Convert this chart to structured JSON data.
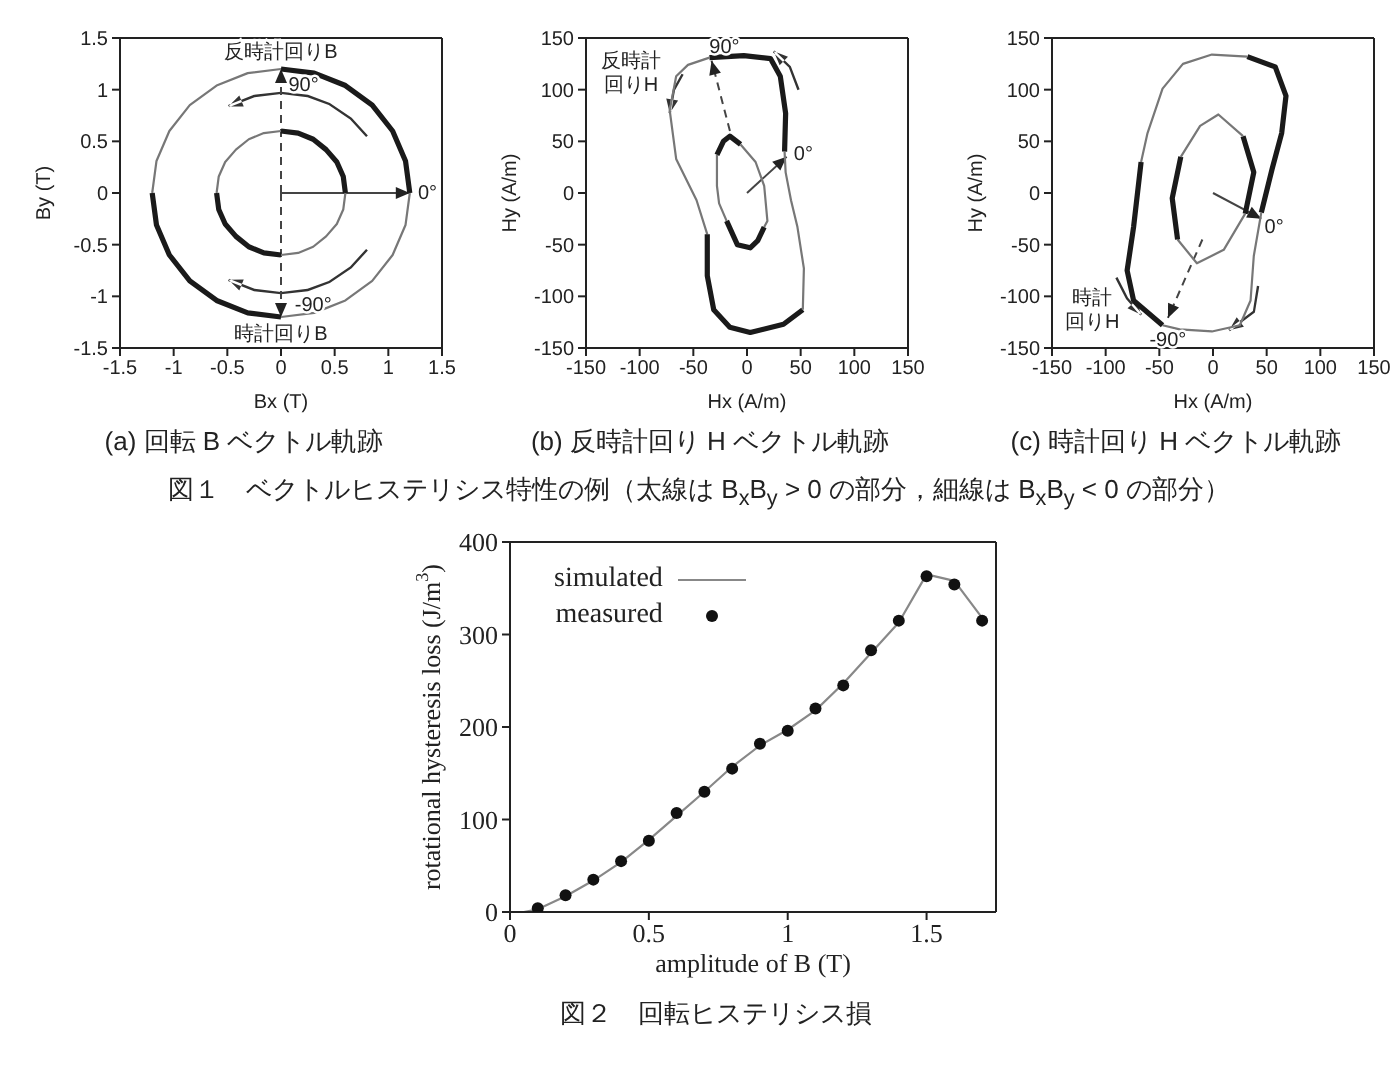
{
  "chart_data": [
    {
      "type": "line",
      "title": "(a) 回転 B ベクトル軌跡",
      "xlabel": "Bx (T)",
      "ylabel": "By (T)",
      "xlim": [
        -1.5,
        1.5
      ],
      "ylim": [
        -1.5,
        1.5
      ],
      "xticks": [
        -1.5,
        -1,
        -0.5,
        0,
        0.5,
        1,
        1.5
      ],
      "yticks": [
        -1.5,
        -1,
        -0.5,
        0,
        0.5,
        1,
        1.5
      ],
      "legend": false,
      "annotations": [
        "反時計回りB",
        "90°",
        "0°",
        "-90°",
        "時計回りB"
      ],
      "series": [
        {
          "color": "#1a1a1a",
          "x": [
            0,
            0.31,
            0.6,
            0.85,
            1.04,
            1.16,
            1.2
          ],
          "values": [
            1.2,
            1.16,
            1.04,
            0.85,
            0.6,
            0.31,
            0
          ]
        },
        {
          "color": "#777777",
          "x": [
            1.2,
            1.16,
            1.04,
            0.85,
            0.6,
            0.31,
            0
          ],
          "values": [
            0,
            -0.31,
            -0.6,
            -0.85,
            -1.04,
            -1.16,
            -1.2
          ]
        },
        {
          "color": "#1a1a1a",
          "x": [
            0,
            -0.31,
            -0.6,
            -0.85,
            -1.04,
            -1.16,
            -1.2
          ],
          "values": [
            -1.2,
            -1.16,
            -1.04,
            -0.85,
            -0.6,
            -0.31,
            0
          ]
        },
        {
          "color": "#777777",
          "x": [
            -1.2,
            -1.16,
            -1.04,
            -0.85,
            -0.6,
            -0.31,
            0
          ],
          "values": [
            0,
            0.31,
            0.6,
            0.85,
            1.04,
            1.16,
            1.2
          ]
        },
        {
          "color": "#1a1a1a",
          "x": [
            0,
            0.16,
            0.3,
            0.42,
            0.52,
            0.58,
            0.6
          ],
          "values": [
            0.6,
            0.58,
            0.52,
            0.42,
            0.3,
            0.16,
            0
          ]
        },
        {
          "color": "#777777",
          "x": [
            0.6,
            0.58,
            0.52,
            0.42,
            0.3,
            0.16,
            0
          ],
          "values": [
            0,
            -0.16,
            -0.3,
            -0.42,
            -0.52,
            -0.58,
            -0.6
          ]
        },
        {
          "color": "#1a1a1a",
          "x": [
            0,
            -0.16,
            -0.3,
            -0.42,
            -0.52,
            -0.58,
            -0.6
          ],
          "values": [
            -0.6,
            -0.58,
            -0.52,
            -0.42,
            -0.3,
            -0.16,
            0
          ]
        },
        {
          "color": "#777777",
          "x": [
            -0.6,
            -0.58,
            -0.52,
            -0.42,
            -0.3,
            -0.16,
            0
          ],
          "values": [
            0,
            0.16,
            0.3,
            0.42,
            0.52,
            0.58,
            0.6
          ]
        }
      ]
    },
    {
      "type": "line",
      "title": "(b) 反時計回り H ベクトル軌跡",
      "xlabel": "Hx (A/m)",
      "ylabel": "Hy (A/m)",
      "xlim": [
        -150,
        150
      ],
      "ylim": [
        -150,
        150
      ],
      "xticks": [
        -150,
        -100,
        -50,
        0,
        50,
        100,
        150
      ],
      "yticks": [
        -150,
        -100,
        -50,
        0,
        50,
        100,
        150
      ],
      "grid": false,
      "legend": false,
      "annotations": [
        "反時計回りH",
        "90°",
        "0°",
        "図１　ベクトルヒステリシス特性の例（太線は B$_{x}$B$_{y}$ > 0 の部分，細線は B$_{x}$B$_{y}$ < 0 の部分）"
      ],
      "series": [
        {
          "color": "#1a1a1a",
          "x": [
            35,
            36,
            31,
            22,
            -3,
            -35
          ],
          "values": [
            40,
            77,
            113,
            130,
            133,
            131
          ]
        },
        {
          "color": "#777777",
          "x": [
            -35,
            -55,
            -66,
            -72,
            -66,
            -47,
            -37
          ],
          "values": [
            131,
            124,
            113,
            80,
            33,
            -7,
            -40
          ]
        },
        {
          "color": "#1a1a1a",
          "x": [
            -37,
            -37,
            -31,
            -16,
            3,
            34,
            52
          ],
          "values": [
            -40,
            -80,
            -113,
            -130,
            -135,
            -127,
            -113
          ]
        },
        {
          "color": "#777777",
          "x": [
            52,
            53,
            47,
            41,
            36,
            35
          ],
          "values": [
            -113,
            -73,
            -33,
            -7,
            20,
            40
          ]
        },
        {
          "color": "#1a1a1a",
          "x": [
            -28,
            -22,
            -16,
            -6
          ],
          "values": [
            37,
            50,
            55,
            47
          ]
        },
        {
          "color": "#777777",
          "x": [
            -6,
            8,
            16,
            19,
            16
          ],
          "values": [
            47,
            30,
            7,
            -27,
            -33
          ]
        },
        {
          "color": "#1a1a1a",
          "x": [
            16,
            10,
            3,
            -9,
            -19
          ],
          "values": [
            -33,
            -46,
            -53,
            -50,
            -27
          ]
        },
        {
          "color": "#777777",
          "x": [
            -19,
            -26,
            -28,
            -28
          ],
          "values": [
            -27,
            -10,
            7,
            37
          ]
        }
      ]
    },
    {
      "type": "line",
      "title": "(c) 時計回り H ベクトル軌跡",
      "xlabel": "Hx (A/m)",
      "ylabel": "Hy (A/m)",
      "xlim": [
        -150,
        150
      ],
      "ylim": [
        -150,
        150
      ],
      "xticks": [
        -150,
        -100,
        -50,
        0,
        50,
        100,
        150
      ],
      "yticks": [
        -150,
        -100,
        -50,
        0,
        50,
        100,
        150
      ],
      "grid": false,
      "legend": false,
      "annotations": [
        "時計回りH",
        "0°",
        "-90°"
      ],
      "series": [
        {
          "color": "#1a1a1a",
          "x": [
            32,
            58,
            68,
            64,
            55,
            45
          ],
          "values": [
            132,
            122,
            94,
            58,
            23,
            -19
          ]
        },
        {
          "color": "#777777",
          "x": [
            45,
            38,
            35,
            25,
            -1,
            -31,
            -47
          ],
          "values": [
            -19,
            -61,
            -104,
            -128,
            -134,
            -132,
            -128
          ]
        },
        {
          "color": "#1a1a1a",
          "x": [
            -47,
            -74,
            -80,
            -74,
            -67
          ],
          "values": [
            -128,
            -104,
            -75,
            -33,
            30
          ]
        },
        {
          "color": "#777777",
          "x": [
            -67,
            -61,
            -47,
            -28,
            -1,
            32
          ],
          "values": [
            30,
            58,
            101,
            125,
            134,
            132
          ]
        },
        {
          "color": "#1a1a1a",
          "x": [
            28,
            38,
            30
          ],
          "values": [
            55,
            20,
            -20
          ]
        },
        {
          "color": "#777777",
          "x": [
            30,
            10,
            -15,
            -33
          ],
          "values": [
            -20,
            -55,
            -68,
            -45
          ]
        },
        {
          "color": "#1a1a1a",
          "x": [
            -33,
            -38,
            -30
          ],
          "values": [
            -45,
            -5,
            35
          ]
        },
        {
          "color": "#777777",
          "x": [
            -30,
            -12,
            5,
            28
          ],
          "values": [
            35,
            65,
            76,
            55
          ]
        }
      ]
    },
    {
      "type": "line",
      "xlabel": "amplitude of B (T)",
      "ylabel": "rotational hysteresis loss (J/m$^{3}$)",
      "xlim": [
        0,
        1.75
      ],
      "ylim": [
        0,
        400
      ],
      "xticks": [
        0,
        0.5,
        1,
        1.5
      ],
      "yticks": [
        0,
        100,
        200,
        300,
        400
      ],
      "grid": false,
      "legend": "top left",
      "annotations": [
        "図２　回転ヒステリシス損"
      ],
      "series": [
        {
          "name": "simulated",
          "color": "#888888",
          "x": [
            0.05,
            0.1,
            0.2,
            0.3,
            0.4,
            0.5,
            0.6,
            0.7,
            0.8,
            0.9,
            1.0,
            1.1,
            1.2,
            1.3,
            1.4,
            1.5,
            1.6,
            1.7
          ],
          "values": [
            0,
            3,
            17,
            34,
            54,
            78,
            104,
            130,
            157,
            180,
            197,
            218,
            247,
            280,
            313,
            365,
            358,
            318
          ]
        },
        {
          "name": "measured",
          "type": "scatter",
          "marker": "circle",
          "color": "#111111",
          "x": [
            0.1,
            0.2,
            0.3,
            0.4,
            0.5,
            0.6,
            0.7,
            0.8,
            0.9,
            1.0,
            1.1,
            1.2,
            1.3,
            1.4,
            1.5,
            1.6,
            1.7
          ],
          "values": [
            4,
            18,
            35,
            55,
            77,
            107,
            130,
            155,
            182,
            196,
            220,
            245,
            283,
            315,
            363,
            354,
            315
          ]
        }
      ]
    }
  ]
}
